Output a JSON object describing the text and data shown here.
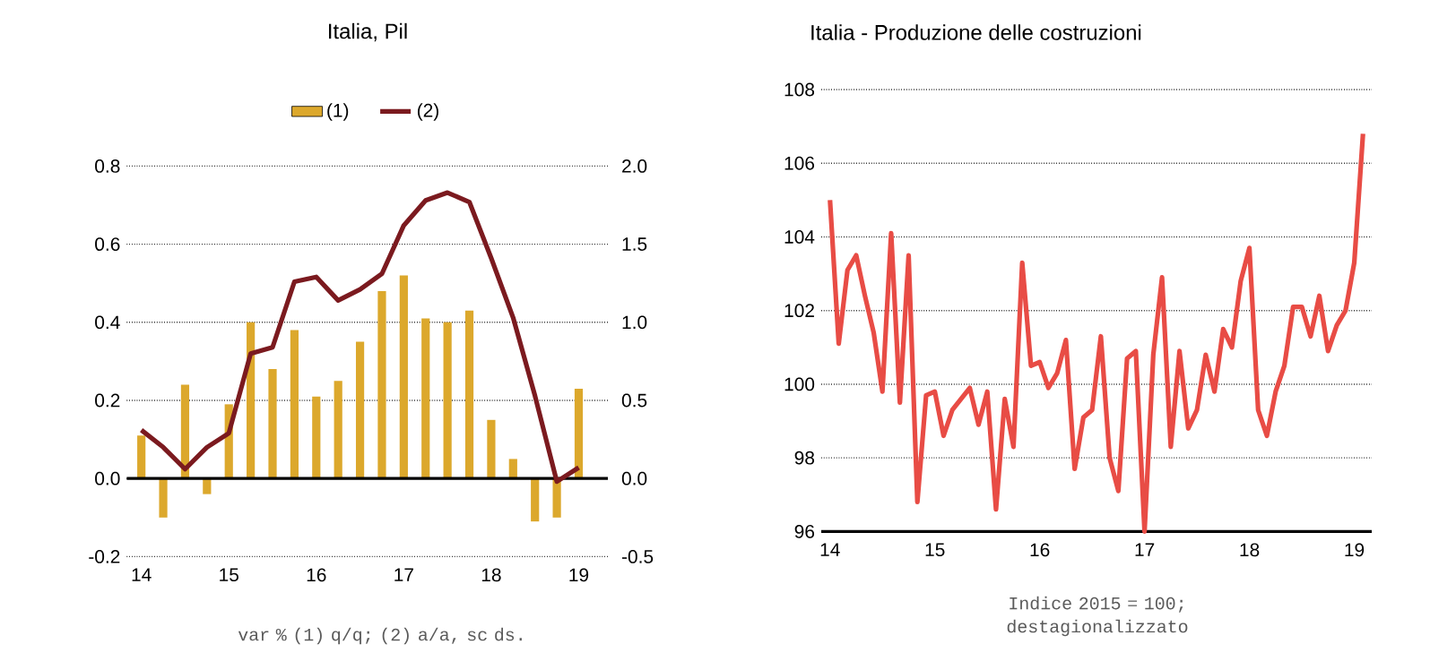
{
  "chart_data": [
    {
      "type": "bar",
      "title": "Italia, Pil",
      "annotations": [
        "var % (1) q/q; (2) a/a, sc ds."
      ],
      "x": [
        "2014-01",
        "2014-04",
        "2014-07",
        "2014-10",
        "2015-01",
        "2015-04",
        "2015-07",
        "2015-10",
        "2016-01",
        "2016-04",
        "2016-07",
        "2016-10",
        "2017-01",
        "2017-04",
        "2017-07",
        "2017-10",
        "2018-01",
        "2018-04",
        "2018-07",
        "2018-10",
        "2019-01"
      ],
      "series": [
        {
          "name": "(1)",
          "type": "bar",
          "color": "#dca82c",
          "values": [
            0.11,
            -0.1,
            0.24,
            -0.04,
            0.19,
            0.4,
            0.28,
            0.38,
            0.21,
            0.25,
            0.35,
            0.48,
            0.52,
            0.41,
            0.4,
            0.43,
            0.15,
            0.05,
            -0.11,
            -0.1,
            0.23
          ]
        },
        {
          "name": "(2)",
          "type": "line",
          "axis": "y2",
          "color": "#7b1a1f",
          "values": [
            0.31,
            0.2,
            0.06,
            0.2,
            0.29,
            0.8,
            0.84,
            1.26,
            1.29,
            1.14,
            1.21,
            1.31,
            1.62,
            1.78,
            1.83,
            1.77,
            1.41,
            1.03,
            0.53,
            -0.02,
            0.07
          ]
        }
      ],
      "xlim": [
        "2013-11",
        "2019-05"
      ],
      "xticks": [
        {
          "value": "2014-01",
          "label": "14"
        },
        {
          "value": "2015-01",
          "label": "15"
        },
        {
          "value": "2016-01",
          "label": "16"
        },
        {
          "value": "2017-01",
          "label": "17"
        },
        {
          "value": "2018-01",
          "label": "18"
        },
        {
          "value": "2019-01",
          "label": "19"
        }
      ],
      "ylim": [
        -0.2,
        0.8
      ],
      "yticks": [
        -0.2,
        {
          "value": 0,
          "label": "0.0"
        },
        0.2,
        0.4,
        0.6,
        0.8
      ],
      "y2lim": [
        -0.5,
        2.0
      ],
      "y2ticks": [
        -0.5,
        {
          "value": 0,
          "label": "0.0"
        },
        0.5,
        {
          "value": 1,
          "label": "1.0"
        },
        1.5,
        {
          "value": 2,
          "label": "2.0"
        }
      ],
      "grid": "y",
      "legend": "top",
      "ref_lines": [
        {
          "axis": "y",
          "value": 0,
          "color": "#000000"
        }
      ]
    },
    {
      "type": "line",
      "title": "Italia - Produzione delle costruzioni",
      "annotations": [
        "Indice 2015 = 100; destagionalizzato"
      ],
      "x": [
        "2014-01",
        "2014-02",
        "2014-03",
        "2014-04",
        "2014-05",
        "2014-06",
        "2014-07",
        "2014-08",
        "2014-09",
        "2014-10",
        "2014-11",
        "2014-12",
        "2015-01",
        "2015-02",
        "2015-03",
        "2015-04",
        "2015-05",
        "2015-06",
        "2015-07",
        "2015-08",
        "2015-09",
        "2015-10",
        "2015-11",
        "2015-12",
        "2016-01",
        "2016-02",
        "2016-03",
        "2016-04",
        "2016-05",
        "2016-06",
        "2016-07",
        "2016-08",
        "2016-09",
        "2016-10",
        "2016-11",
        "2016-12",
        "2017-01",
        "2017-02",
        "2017-03",
        "2017-04",
        "2017-05",
        "2017-06",
        "2017-07",
        "2017-08",
        "2017-09",
        "2017-10",
        "2017-11",
        "2017-12",
        "2018-01",
        "2018-02",
        "2018-03",
        "2018-04",
        "2018-05",
        "2018-06",
        "2018-07",
        "2018-08",
        "2018-09",
        "2018-10",
        "2018-11",
        "2018-12",
        "2019-01",
        "2019-02"
      ],
      "values": [
        105.0,
        101.1,
        103.1,
        103.5,
        102.4,
        101.4,
        99.8,
        104.1,
        99.5,
        103.5,
        96.8,
        99.7,
        99.8,
        98.6,
        99.3,
        99.6,
        99.9,
        98.9,
        99.8,
        96.6,
        99.6,
        98.3,
        103.3,
        100.5,
        100.6,
        99.9,
        100.3,
        101.2,
        97.7,
        99.1,
        99.3,
        101.3,
        98.0,
        97.1,
        100.7,
        100.9,
        96.0,
        100.8,
        102.9,
        98.3,
        100.9,
        98.8,
        99.3,
        100.8,
        99.8,
        101.5,
        101.0,
        102.8,
        103.7,
        99.3,
        98.6,
        99.8,
        100.5,
        102.1,
        102.1,
        101.3,
        102.4,
        100.9,
        101.6,
        102.0,
        103.3,
        106.8
      ],
      "color": "#e84c45",
      "xlim": [
        "2013-12",
        "2019-03"
      ],
      "xticks": [
        {
          "value": "2014-01",
          "label": "14"
        },
        {
          "value": "2015-01",
          "label": "15"
        },
        {
          "value": "2016-01",
          "label": "16"
        },
        {
          "value": "2017-01",
          "label": "17"
        },
        {
          "value": "2018-01",
          "label": "18"
        },
        {
          "value": "2019-01",
          "label": "19"
        }
      ],
      "ylim": [
        96,
        108
      ],
      "yticks": [
        96,
        98,
        100,
        102,
        104,
        106,
        108
      ],
      "grid": "y"
    }
  ]
}
